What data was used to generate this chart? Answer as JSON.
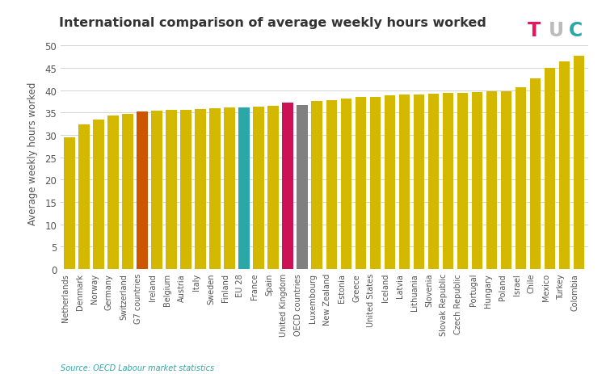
{
  "title": "International comparison of average weekly hours worked",
  "ylabel": "Average weekly hours worked",
  "source": "Source: OECD Labour market statistics",
  "ylim": [
    0,
    52
  ],
  "yticks": [
    0,
    5,
    10,
    15,
    20,
    25,
    30,
    35,
    40,
    45,
    50
  ],
  "categories": [
    "Netherlands",
    "Denmark",
    "Norway",
    "Germany",
    "Switzerland",
    "G7 countries",
    "Ireland",
    "Belgium",
    "Austria",
    "Italy",
    "Sweden",
    "Finland",
    "EU 28",
    "France",
    "Spain",
    "United Kingdom",
    "OECD countries",
    "Luxembourg",
    "New Zealand",
    "Estonia",
    "Greece",
    "United States",
    "Iceland",
    "Latvia",
    "Lithuania",
    "Slovenia",
    "Slovak Republic",
    "Czech Republic",
    "Portugal",
    "Hungary",
    "Poland",
    "Israel",
    "Chile",
    "Mexico",
    "Turkey",
    "Colombia"
  ],
  "values": [
    29.5,
    32.4,
    33.5,
    34.4,
    34.7,
    35.2,
    35.5,
    35.6,
    35.7,
    35.8,
    35.9,
    36.1,
    36.2,
    36.4,
    36.6,
    37.2,
    36.7,
    37.6,
    37.8,
    38.1,
    38.6,
    38.6,
    38.8,
    39.0,
    39.1,
    39.2,
    39.4,
    39.5,
    39.6,
    39.7,
    39.8,
    40.7,
    42.7,
    45.0,
    46.5,
    47.7
  ],
  "colors": [
    "#d4b800",
    "#d4b800",
    "#d4b800",
    "#d4b800",
    "#d4b800",
    "#cc5500",
    "#d4b800",
    "#d4b800",
    "#d4b800",
    "#d4b800",
    "#d4b800",
    "#d4b800",
    "#2aa8a8",
    "#d4b800",
    "#d4b800",
    "#cc1155",
    "#808080",
    "#d4b800",
    "#d4b800",
    "#d4b800",
    "#d4b800",
    "#d4b800",
    "#d4b800",
    "#d4b800",
    "#d4b800",
    "#d4b800",
    "#d4b800",
    "#d4b800",
    "#d4b800",
    "#d4b800",
    "#d4b800",
    "#d4b800",
    "#d4b800",
    "#d4b800",
    "#d4b800",
    "#d4b800"
  ],
  "background_color": "#ffffff",
  "tuc_T_color": "#e8175d",
  "tuc_U_color": "#bbbbbb",
  "tuc_C_color": "#2aa8a8"
}
